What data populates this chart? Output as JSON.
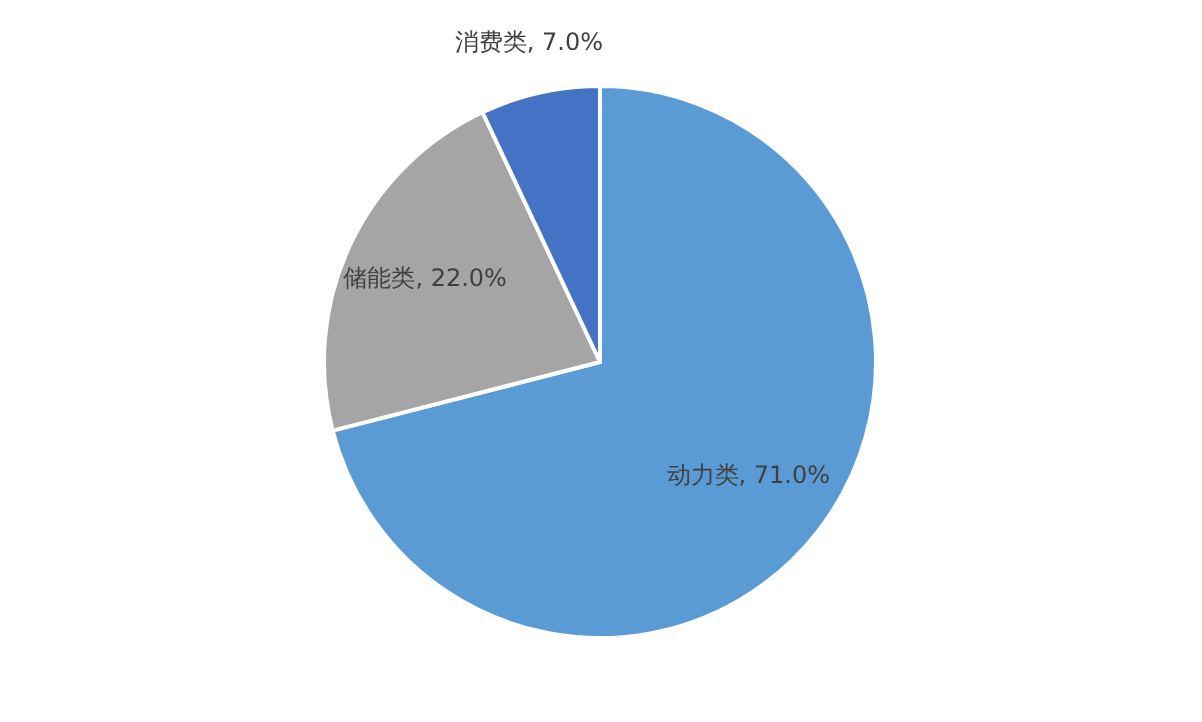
{
  "chart_data": {
    "type": "pie",
    "categories": [
      "动力类",
      "储能类",
      "消费类"
    ],
    "values": [
      71.0,
      22.0,
      7.0
    ],
    "colors": [
      "#5b9bd5",
      "#a5a5a5",
      "#4472c4"
    ],
    "value_labels": [
      ", 71.0%",
      ", 22.0%",
      ", 7.0%"
    ]
  }
}
